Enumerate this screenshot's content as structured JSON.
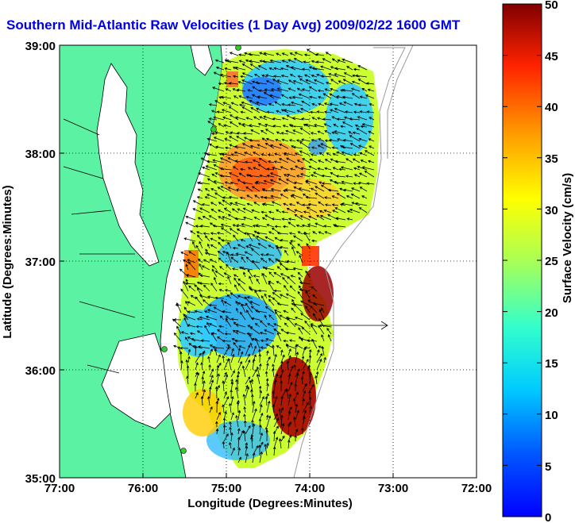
{
  "title": "Southern Mid-Atlantic Raw Velocities (1 Day Avg) 2009/02/22 1600 GMT",
  "x_axis": {
    "label": "Longitude (Degrees:Minutes)",
    "ticks": [
      "77:00",
      "76:00",
      "75:00",
      "74:00",
      "73:00",
      "72:00"
    ]
  },
  "y_axis": {
    "label": "Latitude (Degrees:Minutes)",
    "ticks": [
      "39:00",
      "38:00",
      "37:00",
      "36:00",
      "35:00"
    ]
  },
  "colorbar": {
    "label": "Surface Velocity (cm/s)",
    "ticks": [
      "50",
      "45",
      "40",
      "35",
      "30",
      "25",
      "20",
      "15",
      "10",
      "5",
      "0"
    ],
    "min": 0,
    "max": 50
  },
  "colors": {
    "land": "#5cf2a4",
    "title": "#0000e6",
    "station": "#33cc33"
  },
  "chart_data": {
    "type": "heatmap",
    "title": "Southern Mid-Atlantic Raw Velocities (1 Day Avg) 2009/02/22 1600 GMT",
    "xlabel": "Longitude (Degrees:Minutes)",
    "ylabel": "Latitude (Degrees:Minutes)",
    "xlim": [
      "77:00",
      "72:00"
    ],
    "ylim": [
      "35:00",
      "39:00"
    ],
    "grid": true,
    "colorbar_range": [
      0,
      50
    ],
    "colorbar_units": "cm/s"
  }
}
